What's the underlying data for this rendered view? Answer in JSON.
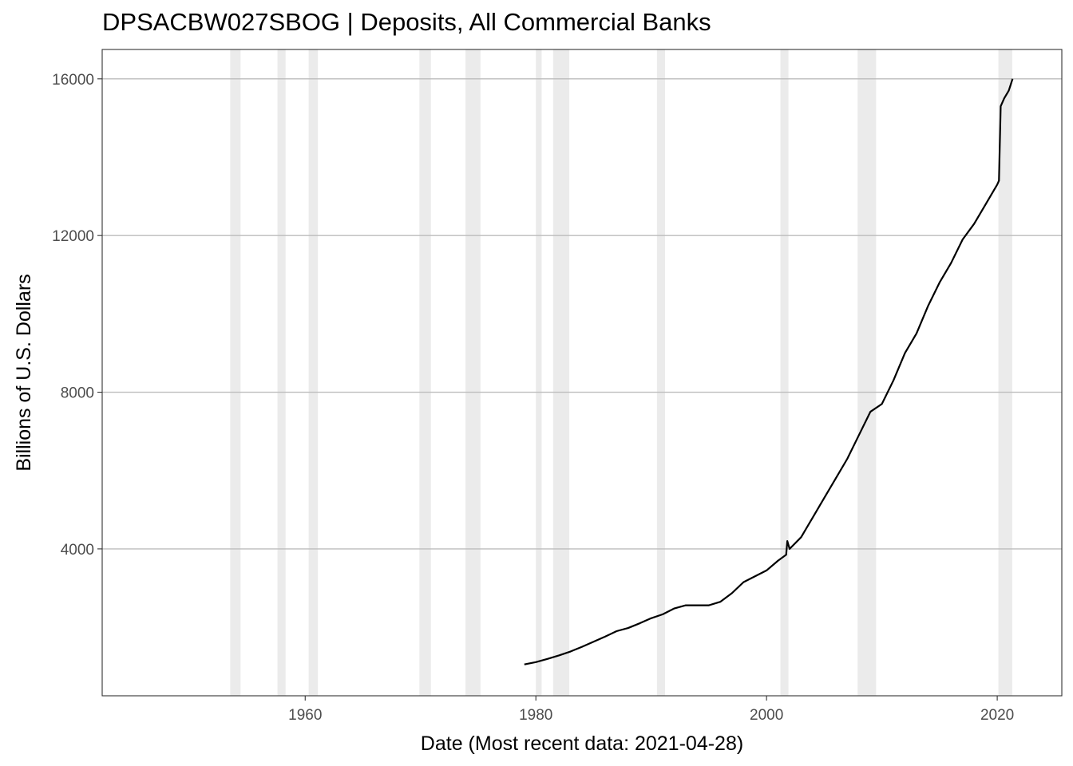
{
  "chart_data": {
    "type": "line",
    "title": "DPSACBW027SBOG | Deposits, All Commercial Banks",
    "xlabel": "Date (Most recent data: 2021-04-28)",
    "ylabel": "Billions of U.S. Dollars",
    "xlim": [
      1942.4,
      2025.6
    ],
    "ylim": [
      250,
      16750
    ],
    "x_ticks": [
      1960,
      1980,
      2000,
      2020
    ],
    "y_ticks": [
      4000,
      8000,
      12000,
      16000
    ],
    "grid": "horizontal major",
    "line_color": "#000000",
    "recession_color": "#ebebeb",
    "recessions": [
      [
        1953.5,
        1954.4
      ],
      [
        1957.6,
        1958.3
      ],
      [
        1960.3,
        1961.1
      ],
      [
        1969.9,
        1970.9
      ],
      [
        1973.9,
        1975.2
      ],
      [
        1980.0,
        1980.5
      ],
      [
        1981.5,
        1982.9
      ],
      [
        1990.5,
        1991.2
      ],
      [
        2001.2,
        2001.9
      ],
      [
        2007.9,
        2009.5
      ],
      [
        2020.1,
        2021.3
      ]
    ],
    "series": [
      {
        "x": [
          1979.0,
          1980.0,
          1981.0,
          1982.0,
          1983.0,
          1984.0,
          1985.0,
          1986.0,
          1987.0,
          1988.0,
          1989.0,
          1990.0,
          1991.0,
          1992.0,
          1993.0,
          1994.0,
          1995.0,
          1996.0,
          1997.0,
          1998.0,
          1999.0,
          2000.0,
          2001.0,
          2001.7,
          2001.8,
          2002.0,
          2003.0,
          2004.0,
          2005.0,
          2006.0,
          2007.0,
          2008.0,
          2009.0,
          2010.0,
          2011.0,
          2012.0,
          2013.0,
          2014.0,
          2015.0,
          2016.0,
          2017.0,
          2018.0,
          2019.0,
          2020.0,
          2020.15,
          2020.3,
          2020.6,
          2021.0,
          2021.33
        ],
        "y": [
          1050,
          1110,
          1190,
          1280,
          1380,
          1500,
          1630,
          1760,
          1900,
          1980,
          2100,
          2230,
          2330,
          2480,
          2560,
          2560,
          2560,
          2650,
          2870,
          3150,
          3300,
          3450,
          3700,
          3850,
          4200,
          4000,
          4300,
          4800,
          5300,
          5800,
          6300,
          6900,
          7500,
          7700,
          8300,
          9000,
          9500,
          10200,
          10800,
          11300,
          11900,
          12300,
          12800,
          13300,
          13400,
          15300,
          15500,
          15700,
          16000
        ]
      }
    ]
  }
}
